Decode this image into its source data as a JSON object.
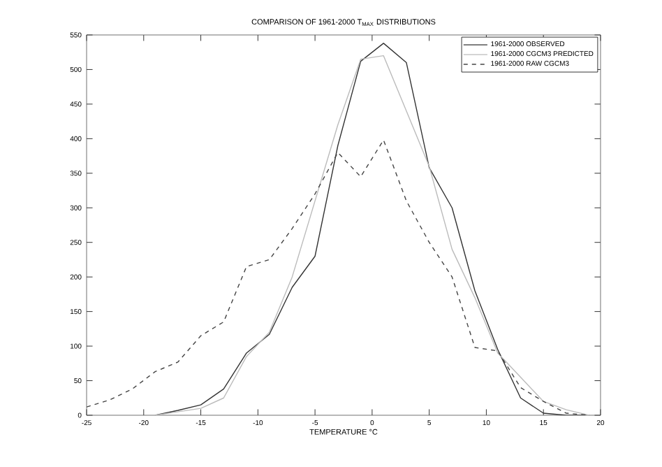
{
  "chart_data": {
    "type": "line",
    "title": "COMPARISON OF 1961-2000 T$_{MAX}$ DISTRIBUTIONS",
    "xlabel": "TEMPERATURE °C",
    "xlim": [
      -25,
      20
    ],
    "xticks": [
      -25,
      -20,
      -15,
      -10,
      -5,
      0,
      5,
      10,
      15,
      20
    ],
    "ylim": [
      0,
      550
    ],
    "yticks": [
      0,
      50,
      100,
      150,
      200,
      250,
      300,
      350,
      400,
      450,
      500,
      550
    ],
    "grid": false,
    "legend": "top right",
    "marker": "none",
    "series": [
      {
        "name": "1961-2000 OBSERVED",
        "color": "#333333",
        "line_style": "solid",
        "x": [
          -19,
          -17,
          -15,
          -13,
          -11,
          -9,
          -7,
          -5,
          -3,
          -1,
          1,
          3,
          5,
          7,
          9,
          11,
          13,
          15,
          17,
          19
        ],
        "values": [
          0,
          7,
          15,
          38,
          90,
          117,
          185,
          230,
          390,
          512,
          538,
          510,
          358,
          300,
          180,
          95,
          25,
          3,
          0,
          0
        ]
      },
      {
        "name": "1961-2000 CGCM3 PREDICTED",
        "color": "#bbbbbb",
        "line_style": "solid",
        "x": [
          -19,
          -17,
          -15,
          -13,
          -11,
          -9,
          -7,
          -5,
          -3,
          -1,
          1,
          3,
          5,
          7,
          9,
          11,
          13,
          15,
          17,
          19
        ],
        "values": [
          0,
          5,
          10,
          25,
          85,
          120,
          200,
          310,
          420,
          515,
          520,
          440,
          360,
          240,
          170,
          90,
          55,
          20,
          8,
          0
        ]
      },
      {
        "name": "1961-2000 RAW CGCM3",
        "color": "#444444",
        "line_style": "dashed",
        "x": [
          -25,
          -23,
          -21,
          -19,
          -17,
          -15,
          -13,
          -11,
          -9,
          -7,
          -5,
          -3,
          -1,
          1,
          3,
          5,
          7,
          9,
          11,
          13,
          15,
          17,
          19
        ],
        "values": [
          12,
          22,
          38,
          63,
          77,
          115,
          135,
          215,
          225,
          270,
          320,
          380,
          345,
          398,
          310,
          250,
          200,
          98,
          93,
          40,
          20,
          3,
          0
        ]
      }
    ]
  }
}
